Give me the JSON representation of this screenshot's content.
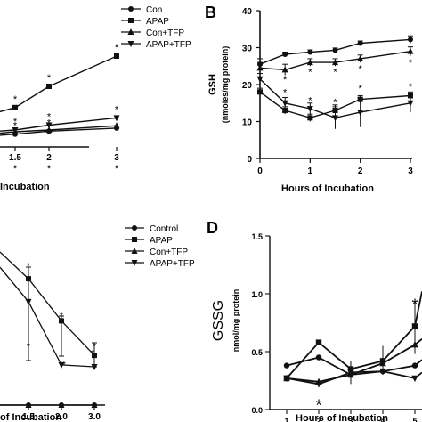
{
  "figure": {
    "panel_b_letter": "B",
    "panel_d_letter": "D"
  },
  "chart_data": [
    {
      "panel": "A",
      "type": "line",
      "xlabel": "Incubation",
      "ylabel": "",
      "x_ticks": [
        1.5,
        2,
        3
      ],
      "x_tick_labels": [
        "1.5",
        "2",
        "3"
      ],
      "legend": [
        "Con",
        "APAP",
        "Con+TFP",
        "APAP+TFP"
      ],
      "legend_position": "top-center",
      "series": [
        {
          "name": "Con",
          "marker": "circle",
          "x": [
            0.5,
            1,
            1.5,
            2,
            3
          ],
          "y": [
            114,
            117,
            121,
            126,
            131
          ]
        },
        {
          "name": "APAP",
          "marker": "square",
          "x": [
            0.5,
            1,
            1.5,
            2,
            3
          ],
          "y": [
            140,
            150,
            165,
            200,
            250
          ]
        },
        {
          "name": "Con+TFP",
          "marker": "triangle-up",
          "x": [
            0.5,
            1,
            1.5,
            2,
            3
          ],
          "y": [
            118,
            120,
            125,
            128,
            135
          ]
        },
        {
          "name": "APAP+TFP",
          "marker": "triangle-down",
          "x": [
            0.5,
            1,
            1.5,
            2,
            3
          ],
          "y": [
            120,
            124,
            128,
            136,
            148
          ]
        }
      ],
      "significance_marks": [
        {
          "x": 1.5,
          "label": "*"
        },
        {
          "x": 2,
          "label": "*"
        },
        {
          "x": 3,
          "label": "*"
        }
      ]
    },
    {
      "panel": "B",
      "type": "line",
      "title": "",
      "xlabel": "Hours of Incubation",
      "ylabel": "GSH",
      "ylabel_unit": "(nmoles/mg protein)",
      "xlim": [
        0,
        3
      ],
      "ylim": [
        0,
        40
      ],
      "x_ticks": [
        0,
        1,
        2,
        3
      ],
      "y_ticks": [
        0,
        10,
        20,
        30,
        40
      ],
      "grid": false,
      "series": [
        {
          "name": "Con",
          "marker": "circle",
          "x": [
            0,
            0.5,
            1,
            1.5,
            2,
            3
          ],
          "y": [
            25.5,
            28.2,
            28.8,
            29.3,
            31.2,
            32.2
          ],
          "err": [
            1.5,
            0.6,
            0.6,
            0.6,
            0.6,
            1.0
          ]
        },
        {
          "name": "Con+TFP",
          "marker": "triangle-up",
          "x": [
            0,
            0.5,
            1,
            1.5,
            2,
            3
          ],
          "y": [
            24.5,
            24.0,
            26.0,
            26.0,
            27.0,
            29.0
          ],
          "err": [
            1.5,
            1.5,
            1.0,
            1.0,
            1.0,
            1.2
          ]
        },
        {
          "name": "APAP+TFP",
          "marker": "triangle-down",
          "x": [
            0,
            0.5,
            1,
            1.5,
            2,
            3
          ],
          "y": [
            21.5,
            15.0,
            13.5,
            11.0,
            12.5,
            15.0
          ],
          "err": [
            1.5,
            1.5,
            1.5,
            3.0,
            4.0,
            2.5
          ]
        },
        {
          "name": "APAP",
          "marker": "square",
          "x": [
            0,
            0.5,
            1,
            1.5,
            2,
            3
          ],
          "y": [
            18.0,
            13.0,
            11.0,
            13.0,
            16.0,
            17.0
          ],
          "err": [
            1.0,
            1.0,
            1.0,
            1.5,
            1.0,
            1.0
          ]
        }
      ],
      "significance_marks": [
        {
          "x": 0.5,
          "y": 21.5,
          "label": "*"
        },
        {
          "x": 1,
          "y": 23.5,
          "label": "*"
        },
        {
          "x": 1.5,
          "y": 23.5,
          "label": "*"
        },
        {
          "x": 2,
          "y": 24.3,
          "label": "*"
        },
        {
          "x": 3,
          "y": 26.0,
          "label": "*"
        },
        {
          "x": 0.5,
          "y": 18.0,
          "label": "*"
        },
        {
          "x": 1,
          "y": 15.8,
          "label": "*"
        },
        {
          "x": 1.5,
          "y": 15.3,
          "label": "*"
        },
        {
          "x": 2,
          "y": 19.0,
          "label": "*"
        },
        {
          "x": 3,
          "y": 19.5,
          "label": "*"
        }
      ]
    },
    {
      "panel": "C",
      "type": "line",
      "xlabel": "of Incubation",
      "ylabel": "",
      "x_ticks": [
        1.5,
        2.0,
        3.0
      ],
      "x_tick_labels": [
        "1.5",
        "2.0",
        "3.0"
      ],
      "legend": [
        "Control",
        "APAP",
        "Con+TFP",
        "APAP+TFP"
      ],
      "legend_position": "top-center",
      "series": [
        {
          "name": "Control",
          "marker": "circle",
          "x": [
            0.5,
            1.5,
            2.0,
            3.0
          ],
          "y": [
            0,
            0,
            0,
            0
          ]
        },
        {
          "name": "APAP",
          "marker": "square",
          "x": [
            0.5,
            1.5,
            2.0,
            3.0
          ],
          "y": [
            80,
            66,
            44,
            26
          ]
        },
        {
          "name": "Con+TFP",
          "marker": "triangle-up",
          "x": [
            0.5,
            1.5,
            2.0,
            3.0
          ],
          "y": [
            0,
            0,
            0,
            0
          ]
        },
        {
          "name": "APAP+TFP",
          "marker": "triangle-down",
          "x": [
            0.5,
            1.5,
            2.0,
            3.0
          ],
          "y": [
            72,
            54,
            21,
            20
          ]
        }
      ],
      "significance_marks": [
        {
          "x": 1.5,
          "label": "*"
        },
        {
          "x": 2.0,
          "label": "*"
        },
        {
          "x": 3.0,
          "label": "*"
        }
      ]
    },
    {
      "panel": "D",
      "type": "line",
      "xlabel": "Hours of Incubation",
      "ylabel": "GSSG",
      "ylabel_unit": "nmol/mg protein",
      "xlim": [
        0.5,
        5
      ],
      "ylim": [
        0,
        1.5
      ],
      "x_ticks": [
        1,
        2,
        3,
        4,
        5
      ],
      "y_ticks": [
        0,
        0.5,
        1.0,
        1.5
      ],
      "y_tick_labels": [
        "0.0",
        "0.5",
        "1.0",
        "1.5"
      ],
      "grid": false,
      "series": [
        {
          "name": "Control",
          "marker": "circle",
          "x": [
            1,
            2,
            3,
            4,
            5
          ],
          "y": [
            0.38,
            0.45,
            0.3,
            0.33,
            0.38
          ]
        },
        {
          "name": "APAP",
          "marker": "square",
          "x": [
            1,
            2,
            3,
            4,
            5
          ],
          "y": [
            0.27,
            0.58,
            0.35,
            0.42,
            0.72
          ]
        },
        {
          "name": "Con+TFP",
          "marker": "triangle-up",
          "x": [
            1,
            2,
            3,
            4,
            5
          ],
          "y": [
            0.27,
            0.24,
            0.3,
            0.4,
            0.56
          ]
        },
        {
          "name": "APAP+TFP",
          "marker": "triangle-down",
          "x": [
            1,
            2,
            3,
            4,
            5
          ],
          "y": [
            0.27,
            0.22,
            0.32,
            0.33,
            0.27
          ]
        }
      ],
      "significance_marks": [
        {
          "x": 2,
          "y": 0.05,
          "label": "*"
        },
        {
          "x": 5,
          "y": 0.92,
          "label": "*"
        }
      ]
    }
  ]
}
